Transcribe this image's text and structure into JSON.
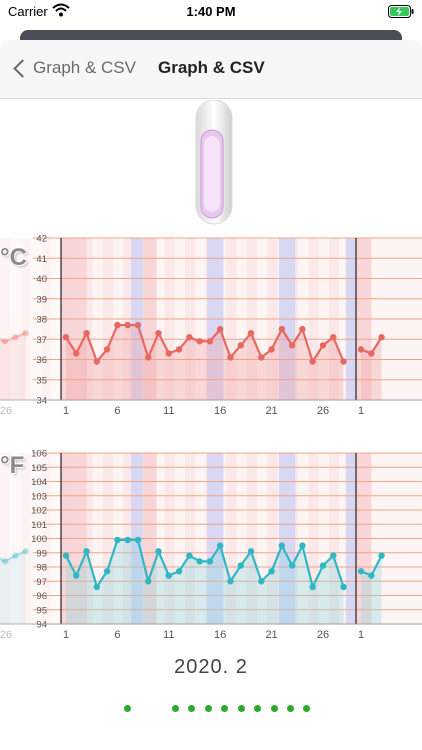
{
  "status_bar": {
    "carrier": "Carrier",
    "time": "1:40 PM"
  },
  "nav": {
    "back_label": "Graph & CSV",
    "title": "Graph & CSV"
  },
  "colors": {
    "celsius_line": "#e66860",
    "fahrenheit_line": "#2fb8c4",
    "page_dot": "#2aa92a"
  },
  "celsius_chart": {
    "unit": "°C",
    "y_ticks": [
      "42",
      "41",
      "40",
      "39",
      "38",
      "37",
      "36",
      "35",
      "34"
    ],
    "x_ticks": [
      "1",
      "6",
      "11",
      "16",
      "21",
      "26"
    ],
    "prev_month_tick": "26",
    "next_month_tick": "1"
  },
  "fahrenheit_chart": {
    "unit": "°F",
    "y_ticks": [
      "106",
      "105",
      "104",
      "103",
      "102",
      "101",
      "100",
      "99",
      "98",
      "97",
      "96",
      "95",
      "94"
    ],
    "x_ticks": [
      "1",
      "6",
      "11",
      "16",
      "21",
      "26"
    ],
    "prev_month_tick": "26",
    "next_month_tick": "1"
  },
  "chart_data": [
    {
      "type": "line",
      "title": "",
      "ylabel": "°C",
      "ylim": [
        34,
        42
      ],
      "x": [
        1,
        2,
        3,
        4,
        5,
        6,
        7,
        8,
        9,
        10,
        11,
        12,
        13,
        14,
        15,
        16,
        17,
        18,
        19,
        20,
        21,
        22,
        23,
        24,
        25,
        26,
        27,
        28
      ],
      "series": [
        {
          "values": [
            37.1,
            36.3,
            37.3,
            35.9,
            36.5,
            37.7,
            37.7,
            37.7,
            36.1,
            37.3,
            36.3,
            36.5,
            37.1,
            36.9,
            36.9,
            37.5,
            36.1,
            36.7,
            37.3,
            36.1,
            36.5,
            37.5,
            36.7,
            37.5,
            35.9,
            36.7,
            37.1,
            35.9
          ]
        }
      ],
      "prev_month": {
        "x": [
          24,
          25,
          26,
          27,
          28
        ],
        "values": [
          37.1,
          37.1,
          36.9,
          37.1,
          37.3
        ]
      },
      "next_month": {
        "x": [
          1,
          2,
          3
        ],
        "values": [
          36.5,
          36.3,
          37.1
        ]
      },
      "grid": true
    },
    {
      "type": "line",
      "title": "",
      "ylabel": "°F",
      "ylim": [
        94,
        106
      ],
      "x": [
        1,
        2,
        3,
        4,
        5,
        6,
        7,
        8,
        9,
        10,
        11,
        12,
        13,
        14,
        15,
        16,
        17,
        18,
        19,
        20,
        21,
        22,
        23,
        24,
        25,
        26,
        27,
        28
      ],
      "series": [
        {
          "values": [
            98.8,
            97.4,
            99.1,
            96.6,
            97.7,
            99.9,
            99.9,
            99.9,
            97.0,
            99.1,
            97.4,
            97.7,
            98.8,
            98.4,
            98.4,
            99.5,
            97.0,
            98.1,
            99.1,
            97.0,
            97.7,
            99.5,
            98.1,
            99.5,
            96.6,
            98.1,
            98.8,
            96.6
          ]
        }
      ],
      "prev_month": {
        "x": [
          24,
          25,
          26,
          27,
          28
        ],
        "values": [
          98.8,
          98.8,
          98.4,
          98.8,
          99.1
        ]
      },
      "next_month": {
        "x": [
          1,
          2,
          3
        ],
        "values": [
          97.7,
          97.4,
          98.8
        ]
      },
      "grid": true
    }
  ],
  "month_label": "2020. 2",
  "pagination": {
    "count": 10,
    "current": 0
  }
}
